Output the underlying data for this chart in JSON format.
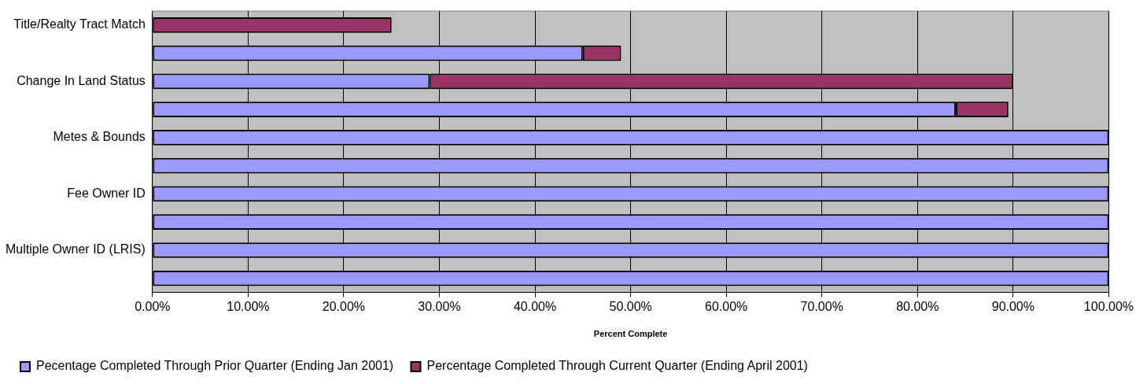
{
  "chart_data": {
    "type": "bar",
    "orientation": "horizontal",
    "stacked": true,
    "categories": [
      "Title/Realty Tract Match",
      null,
      "Change In Land Status",
      null,
      "Metes & Bounds",
      null,
      "Fee Owner ID",
      null,
      "Multiple Owner ID (LRIS)",
      null
    ],
    "series": [
      {
        "name": "Pecentage Completed Through Prior Quarter (Ending Jan 2001)",
        "color": "#9999ff",
        "values": [
          0,
          45,
          29,
          84,
          100,
          100,
          100,
          100,
          100,
          100
        ]
      },
      {
        "name": "Percentage Completed Through Current Quarter (Ending April 2001)",
        "color": "#993366",
        "values": [
          25,
          4,
          61,
          5.5,
          0,
          0,
          0,
          0,
          0,
          0
        ]
      }
    ],
    "xlabel": "Percent Complete",
    "xlim": [
      0,
      100
    ],
    "xticks": [
      {
        "value": 0,
        "label": "0.00%"
      },
      {
        "value": 10,
        "label": "10.00%"
      },
      {
        "value": 20,
        "label": "20.00%"
      },
      {
        "value": 30,
        "label": "30.00%"
      },
      {
        "value": 40,
        "label": "40.00%"
      },
      {
        "value": 50,
        "label": "50.00%"
      },
      {
        "value": 60,
        "label": "60.00%"
      },
      {
        "value": 70,
        "label": "70.00%"
      },
      {
        "value": 80,
        "label": "80.00%"
      },
      {
        "value": 90,
        "label": "90.00%"
      },
      {
        "value": 100,
        "label": "100.00%"
      }
    ],
    "grid": "x",
    "legend": "bottom left"
  }
}
